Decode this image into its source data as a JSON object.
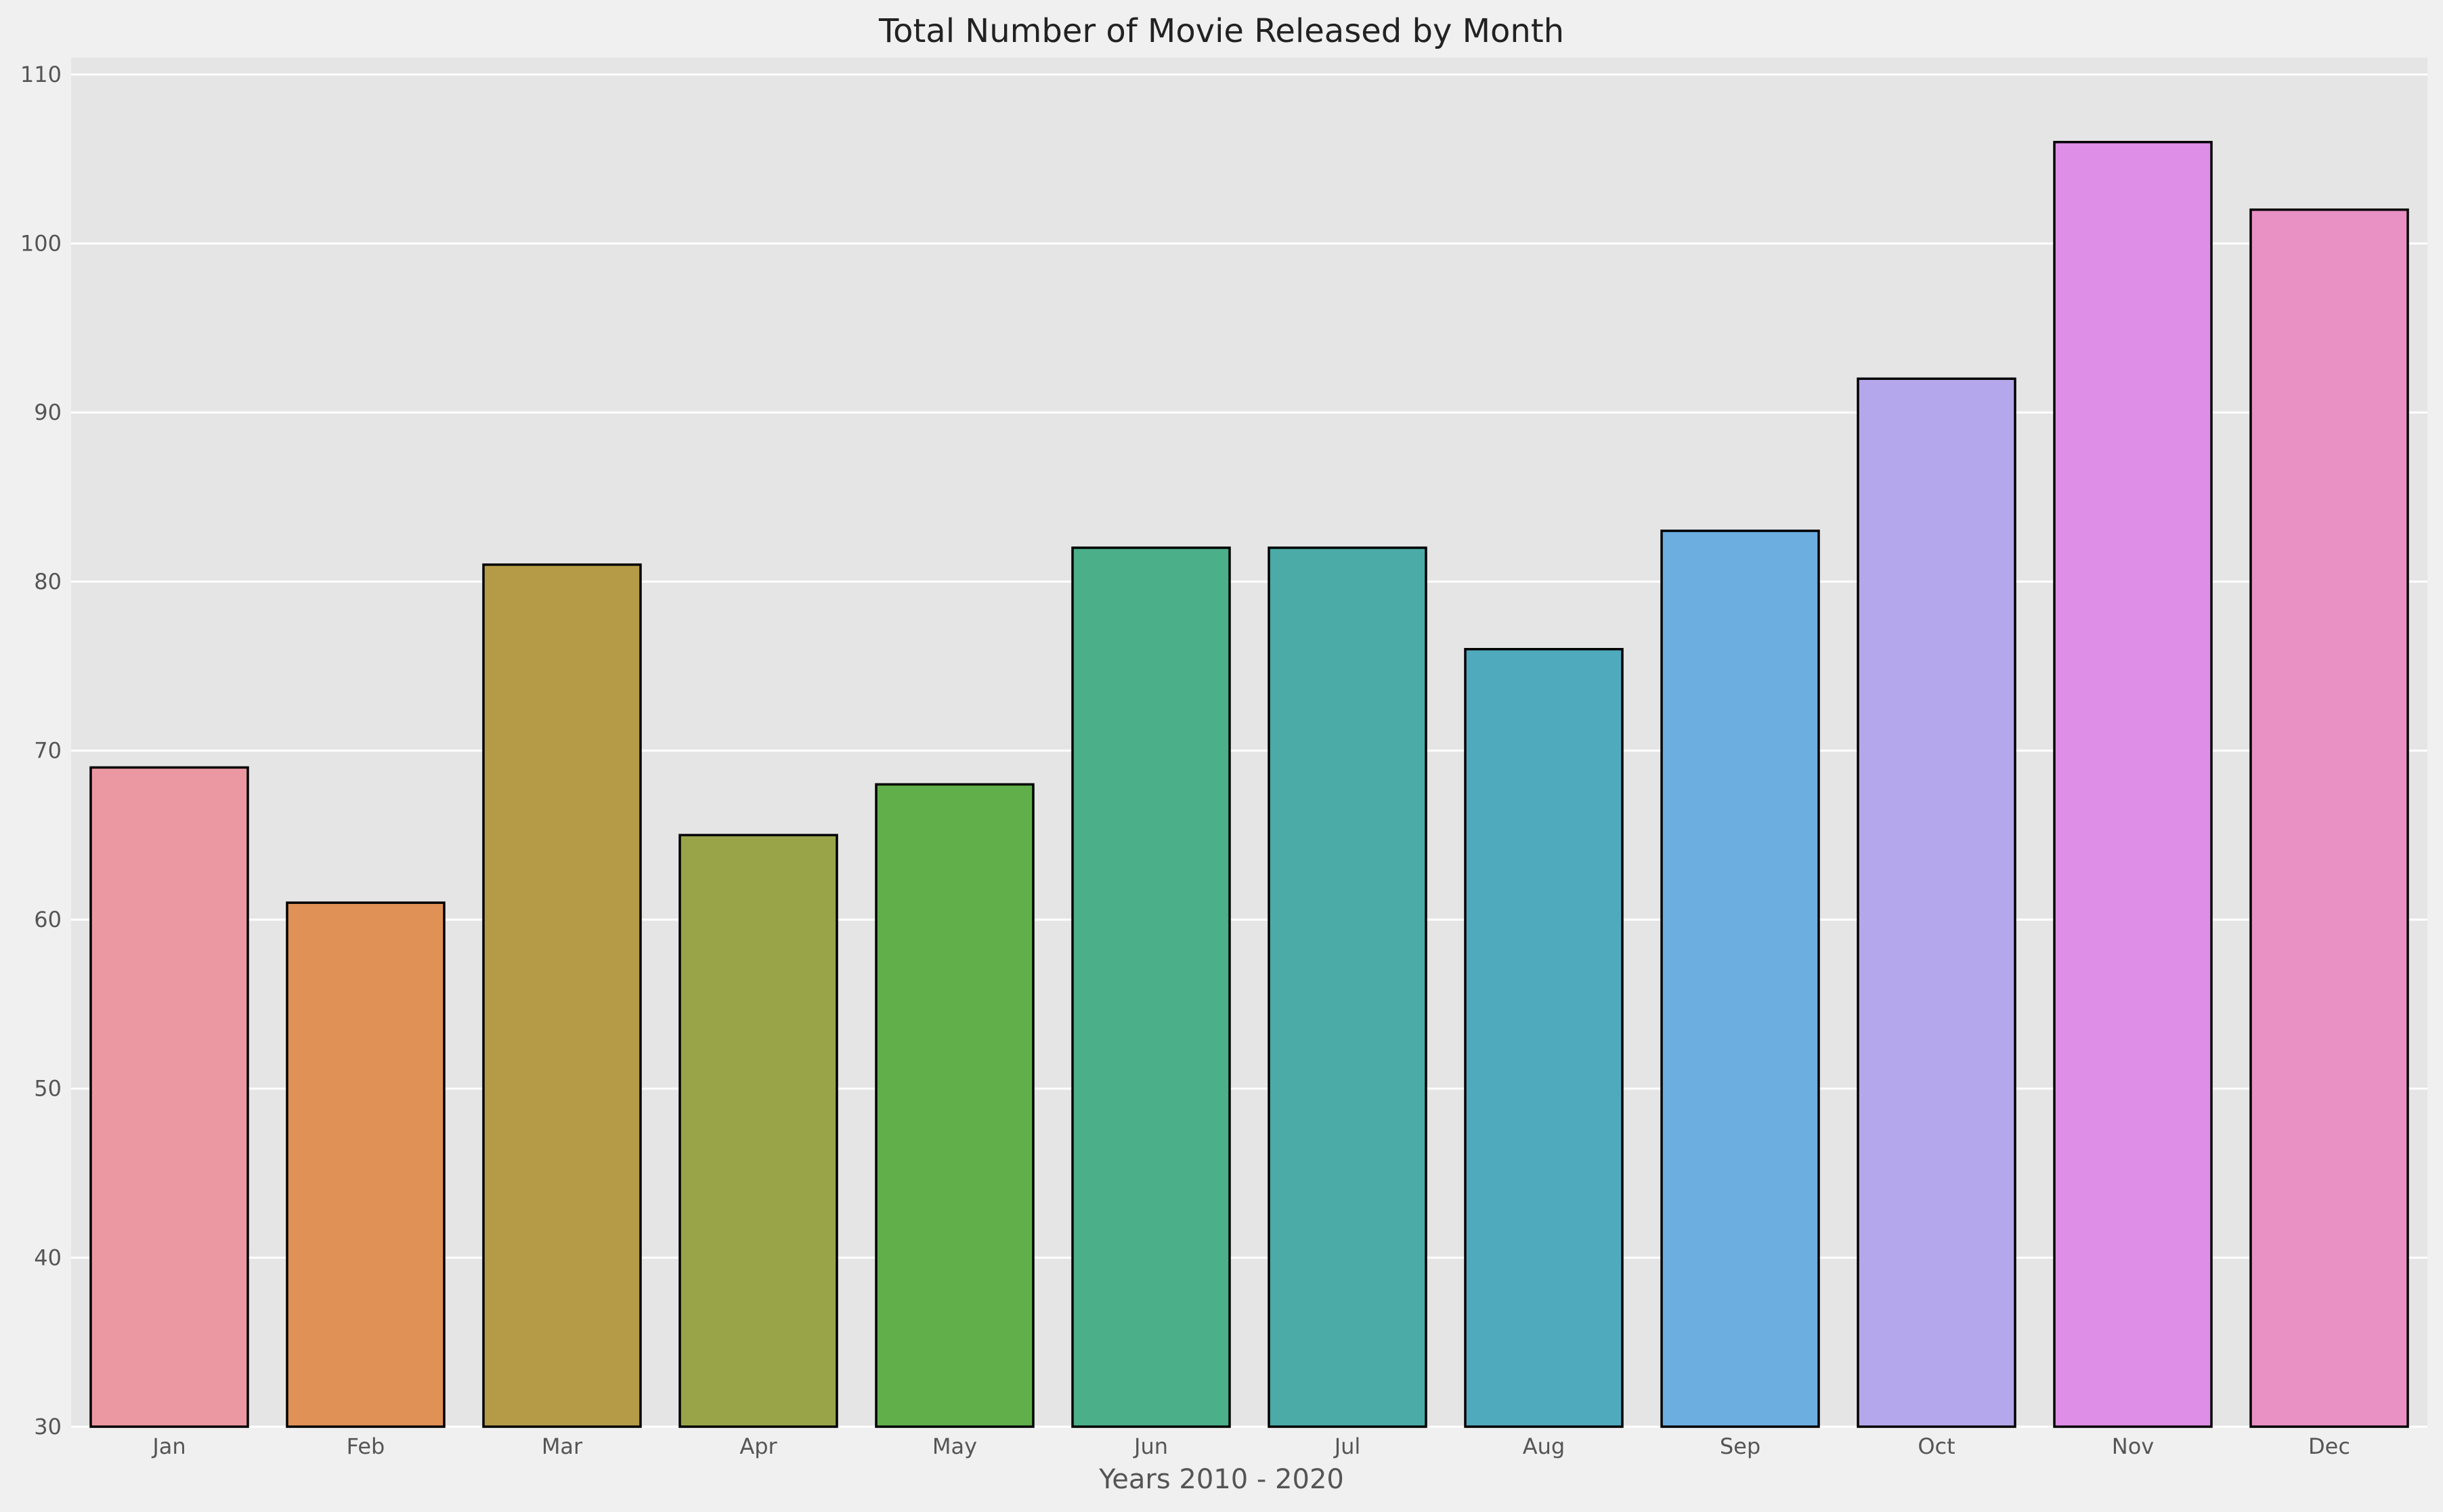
{
  "chart_data": {
    "type": "bar",
    "title": "Total Number of Movie Released by Month",
    "xlabel": "Years 2010 - 2020",
    "ylabel": "",
    "categories": [
      "Jan",
      "Feb",
      "Mar",
      "Apr",
      "May",
      "Jun",
      "Jul",
      "Aug",
      "Sep",
      "Oct",
      "Nov",
      "Dec"
    ],
    "values": [
      69,
      61,
      81,
      65,
      68,
      82,
      82,
      76,
      83,
      92,
      106,
      102
    ],
    "colors": [
      "#eb98a3",
      "#e09156",
      "#b59b48",
      "#99a448",
      "#60af4b",
      "#4baf89",
      "#4aaba7",
      "#50aabe",
      "#6daee1",
      "#b5a7eb",
      "#df8ee8",
      "#e990c4"
    ],
    "ylim": [
      30,
      111
    ],
    "yticks": [
      30,
      40,
      50,
      60,
      70,
      80,
      90,
      100,
      110
    ],
    "grid": true,
    "background": "#e5e5e5",
    "page_background": "#f0f0f0"
  }
}
